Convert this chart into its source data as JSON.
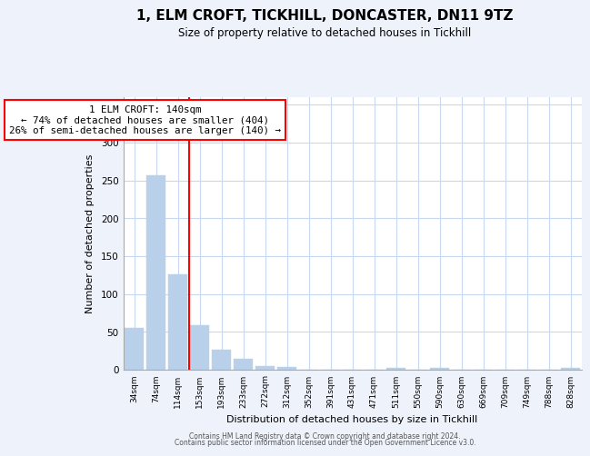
{
  "title": "1, ELM CROFT, TICKHILL, DONCASTER, DN11 9TZ",
  "subtitle": "Size of property relative to detached houses in Tickhill",
  "xlabel": "Distribution of detached houses by size in Tickhill",
  "ylabel": "Number of detached properties",
  "bar_labels": [
    "34sqm",
    "74sqm",
    "114sqm",
    "153sqm",
    "193sqm",
    "233sqm",
    "272sqm",
    "312sqm",
    "352sqm",
    "391sqm",
    "431sqm",
    "471sqm",
    "511sqm",
    "550sqm",
    "590sqm",
    "630sqm",
    "669sqm",
    "709sqm",
    "749sqm",
    "788sqm",
    "828sqm"
  ],
  "bar_values": [
    55,
    257,
    126,
    59,
    27,
    14,
    5,
    4,
    0,
    0,
    0,
    0,
    3,
    0,
    2,
    0,
    0,
    0,
    0,
    0,
    2
  ],
  "bar_color": "#b8d0ea",
  "annotation_box_text": "1 ELM CROFT: 140sqm\n← 74% of detached houses are smaller (404)\n26% of semi-detached houses are larger (140) →",
  "ylim": [
    0,
    360
  ],
  "yticks": [
    0,
    50,
    100,
    150,
    200,
    250,
    300,
    350
  ],
  "footer_line1": "Contains HM Land Registry data © Crown copyright and database right 2024.",
  "footer_line2": "Contains public sector information licensed under the Open Government Licence v3.0.",
  "bg_color": "#eef2fb",
  "plot_bg_color": "#ffffff",
  "grid_color": "#c8d8f0"
}
